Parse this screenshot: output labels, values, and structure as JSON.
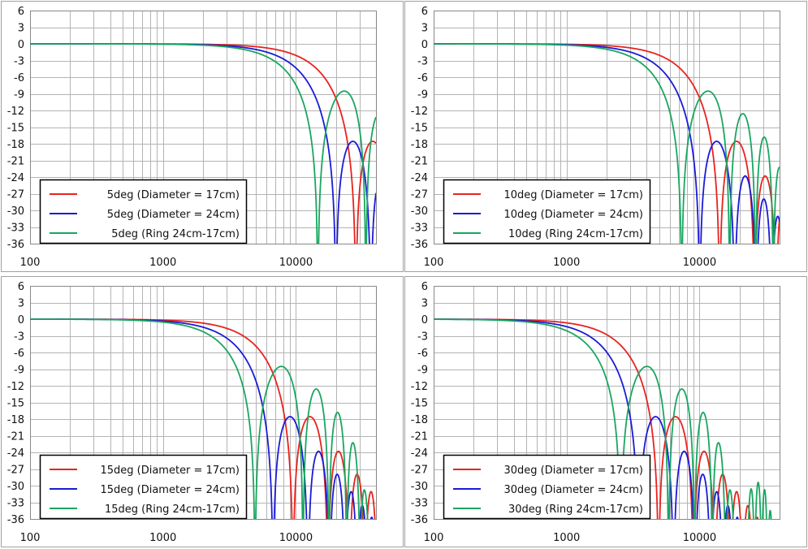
{
  "colors": {
    "red": "#e8221e",
    "blue": "#1a1ad8",
    "green": "#19a660",
    "grid": "#b4b4b4",
    "frame": "#a0a0a0"
  },
  "chart_data": [
    {
      "type": "line",
      "x_scale": "log",
      "xlim": [
        100,
        40000
      ],
      "ylim": [
        -36,
        6
      ],
      "yticks": [
        "6",
        "3",
        "0",
        "-3",
        "-6",
        "-9",
        "-12",
        "-15",
        "-18",
        "-21",
        "-24",
        "-27",
        "-30",
        "-33",
        "-36"
      ],
      "xticks": [
        "100",
        "1000",
        "10000"
      ],
      "legend_position": "bottom-left",
      "series": [
        {
          "name": "5deg (Diameter = 17cm)",
          "color": "red",
          "kind": "piston",
          "angle": 5,
          "dia_m": 0.17,
          "notches_hz": [
            36000
          ],
          "sidelobe_peak_db": -17.6
        },
        {
          "name": "5deg (Diameter = 24cm)",
          "color": "blue",
          "kind": "piston",
          "angle": 5,
          "dia_m": 0.24,
          "notches_hz": [
            19500,
            39000
          ],
          "sidelobe_peak_db": -17.6
        },
        {
          "name": "5deg (Ring 24cm-17cm)",
          "color": "green",
          "kind": "ring",
          "angle": 5,
          "notches_hz": [
            15500,
            33500
          ],
          "sidelobe_peak_db": -8.4
        }
      ]
    },
    {
      "type": "line",
      "x_scale": "log",
      "xlim": [
        100,
        40000
      ],
      "ylim": [
        -36,
        6
      ],
      "yticks": [
        "6",
        "3",
        "0",
        "-3",
        "-6",
        "-9",
        "-12",
        "-15",
        "-18",
        "-21",
        "-24",
        "-27",
        "-30",
        "-33",
        "-36"
      ],
      "xticks": [
        "100",
        "1000",
        "10000"
      ],
      "legend_position": "bottom-left",
      "series": [
        {
          "name": "10deg (Diameter = 17cm)",
          "color": "red",
          "kind": "piston",
          "angle": 10,
          "dia_m": 0.17,
          "notches_hz": [
            14100,
            25900,
            37500
          ],
          "sidelobe_peak_db": -17.6
        },
        {
          "name": "10deg (Diameter = 24cm)",
          "color": "blue",
          "kind": "piston",
          "angle": 10,
          "dia_m": 0.24,
          "notches_hz": [
            10000,
            18300,
            26600,
            34900
          ],
          "sidelobe_peak_db": -17.6
        },
        {
          "name": "10deg (Ring 24cm-17cm)",
          "color": "green",
          "kind": "ring",
          "angle": 10,
          "notches_hz": [
            8000,
            16500,
            25000,
            33000
          ],
          "sidelobe_peak_db": -8.4
        }
      ]
    },
    {
      "type": "line",
      "x_scale": "log",
      "xlim": [
        100,
        40000
      ],
      "ylim": [
        -36,
        6
      ],
      "yticks": [
        "6",
        "3",
        "0",
        "-3",
        "-6",
        "-9",
        "-12",
        "-15",
        "-18",
        "-21",
        "-24",
        "-27",
        "-30",
        "-33",
        "-36"
      ],
      "xticks": [
        "100",
        "1000",
        "10000"
      ],
      "legend_position": "bottom-left",
      "series": [
        {
          "name": "15deg (Diameter = 17cm)",
          "color": "red",
          "kind": "piston",
          "angle": 15,
          "dia_m": 0.17,
          "notches_hz": [
            9500,
            17400,
            25200,
            33000
          ],
          "sidelobe_peak_db": -17.6
        },
        {
          "name": "15deg (Diameter = 24cm)",
          "color": "blue",
          "kind": "piston",
          "angle": 15,
          "dia_m": 0.24,
          "notches_hz": [
            6700,
            12300,
            17800,
            23400,
            29000,
            34500
          ],
          "sidelobe_peak_db": -17.6
        },
        {
          "name": "15deg (Ring 24cm-17cm)",
          "color": "green",
          "kind": "ring",
          "angle": 15,
          "notches_hz": [
            5300,
            11000,
            16700,
            22300,
            27800,
            33300
          ],
          "sidelobe_peak_db": -8.4
        }
      ]
    },
    {
      "type": "line",
      "x_scale": "log",
      "xlim": [
        100,
        40000
      ],
      "ylim": [
        -36,
        6
      ],
      "yticks": [
        "6",
        "3",
        "0",
        "-3",
        "-6",
        "-9",
        "-12",
        "-15",
        "-18",
        "-21",
        "-24",
        "-27",
        "-30",
        "-33",
        "-36"
      ],
      "xticks": [
        "100",
        "1000",
        "10000"
      ],
      "legend_position": "bottom-left",
      "series": [
        {
          "name": "30deg (Diameter = 17cm)",
          "color": "red",
          "kind": "piston",
          "angle": 30,
          "dia_m": 0.17,
          "notches_hz": [
            4900,
            9000,
            13000,
            17000,
            21000,
            25000,
            29000,
            33000,
            37000
          ],
          "sidelobe_peak_db": -17.6
        },
        {
          "name": "30deg (Diameter = 24cm)",
          "color": "blue",
          "kind": "piston",
          "angle": 30,
          "dia_m": 0.24,
          "notches_hz": [
            3500,
            6400,
            9200,
            12100,
            14900,
            17800,
            20600,
            23500,
            26300,
            29200,
            32000,
            34900,
            37700
          ],
          "sidelobe_peak_db": -17.6
        },
        {
          "name": "30deg (Ring 24cm-17cm)",
          "color": "green",
          "kind": "ring",
          "angle": 30,
          "notches_hz": [
            2700,
            5700,
            8600,
            11500,
            14400,
            17300,
            20100,
            23000,
            25900,
            28700,
            31600,
            34400,
            37300
          ],
          "sidelobe_peak_db": -8.4
        }
      ]
    }
  ]
}
